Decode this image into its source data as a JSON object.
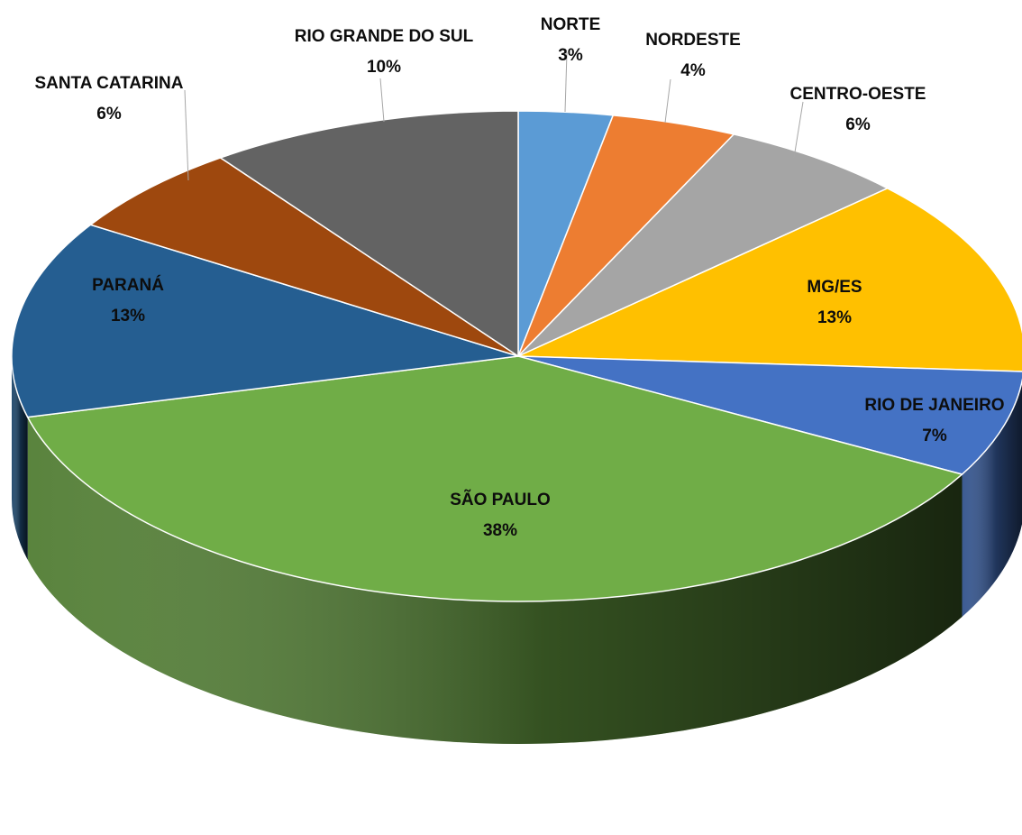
{
  "chart_data": {
    "type": "pie",
    "variant": "3d",
    "start_angle_deg": 0,
    "direction": "clockwise",
    "slices": [
      {
        "label": "NORTE",
        "value": 3,
        "display": "3%",
        "color": "#5b9bd5",
        "label_outside": true
      },
      {
        "label": "NORDESTE",
        "value": 4,
        "display": "4%",
        "color": "#ed7d31",
        "label_outside": true
      },
      {
        "label": "CENTRO-OESTE",
        "value": 6,
        "display": "6%",
        "color": "#a5a5a5",
        "label_outside": true
      },
      {
        "label": "MG/ES",
        "value": 13,
        "display": "13%",
        "color": "#ffc000",
        "label_outside": false
      },
      {
        "label": "RIO DE JANEIRO",
        "value": 7,
        "display": "7%",
        "color": "#4472c4",
        "label_outside": false
      },
      {
        "label": "SÃO PAULO",
        "value": 38,
        "display": "38%",
        "color": "#70ad47",
        "label_outside": false
      },
      {
        "label": "PARANÁ",
        "value": 13,
        "display": "13%",
        "color": "#255e91",
        "label_outside": false
      },
      {
        "label": "SANTA CATARINA",
        "value": 6,
        "display": "6%",
        "color": "#9e480e",
        "label_outside": true
      },
      {
        "label": "RIO GRANDE DO SUL",
        "value": 10,
        "display": "10%",
        "color": "#636363",
        "label_outside": true
      }
    ]
  }
}
